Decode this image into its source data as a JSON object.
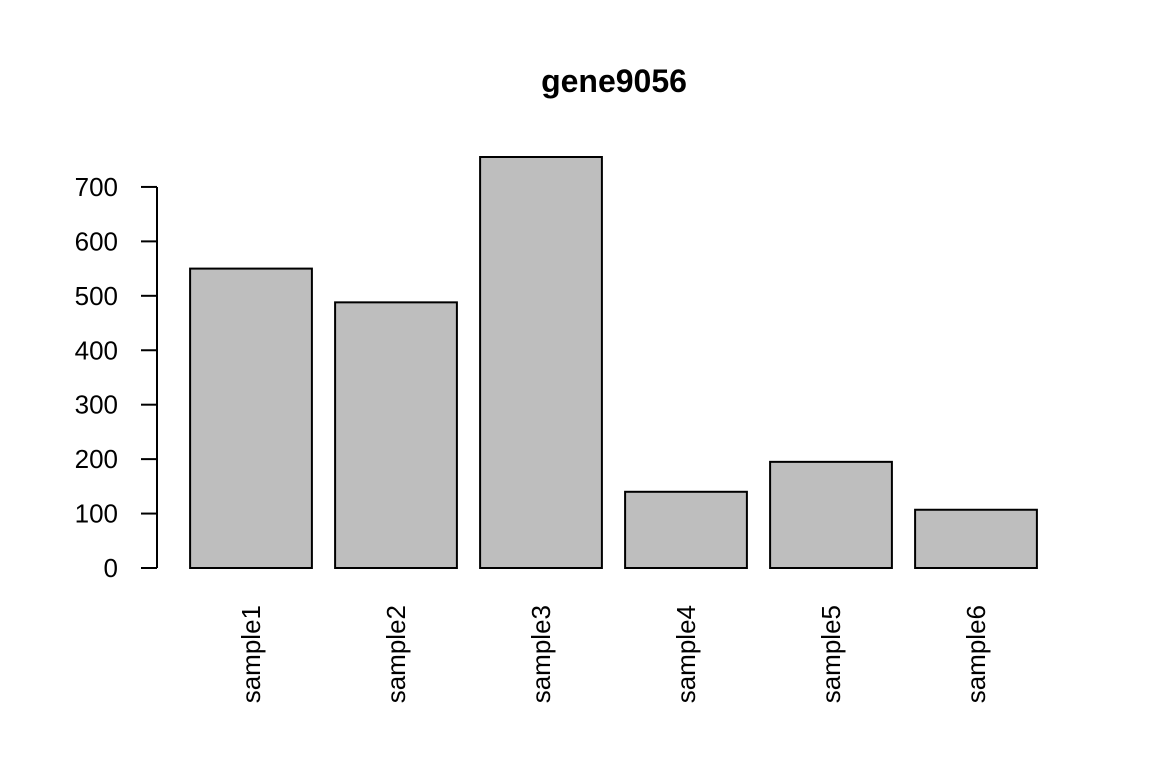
{
  "chart_data": {
    "type": "bar",
    "title": "gene9056",
    "categories": [
      "sample1",
      "sample2",
      "sample3",
      "sample4",
      "sample5",
      "sample6"
    ],
    "values": [
      550,
      488,
      755,
      140,
      195,
      107
    ],
    "color": "#bebebe",
    "ylim": [
      0,
      755
    ],
    "yticks": [
      0,
      100,
      200,
      300,
      400,
      500,
      600,
      700
    ],
    "grid": false
  }
}
